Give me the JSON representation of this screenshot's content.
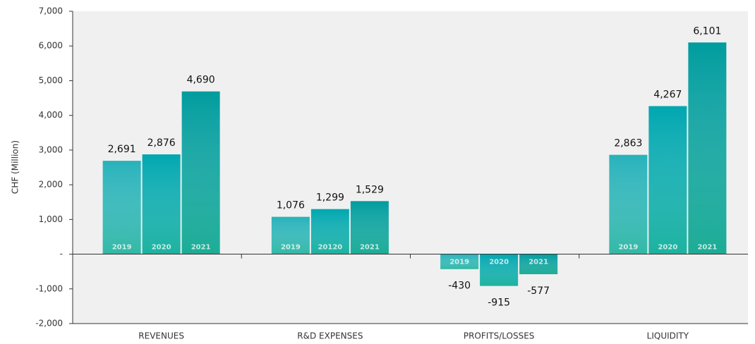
{
  "chart_data": {
    "type": "bar",
    "ylabel": "CHF (Million)",
    "categories": [
      "REVENUES",
      "R&D EXPENSES",
      "PROFITS/LOSSES",
      "LIQUIDITY"
    ],
    "series": [
      {
        "color": "#27b2ba",
        "values": [
          2691,
          1076,
          -430,
          2863
        ],
        "value_labels": [
          "2,691",
          "1,076",
          "-430",
          "2,863"
        ],
        "bar_labels": [
          "2019",
          "2019",
          "2019",
          "2019"
        ]
      },
      {
        "color": "#00a7b0",
        "values": [
          2876,
          1299,
          -915,
          4267
        ],
        "value_labels": [
          "2,876",
          "1,299",
          "-915",
          "4,267"
        ],
        "bar_labels": [
          "2020",
          "20120",
          "2020",
          "2020"
        ]
      },
      {
        "color": "#009c9e",
        "values": [
          4690,
          1529,
          -577,
          6101
        ],
        "value_labels": [
          "4,690",
          "1,529",
          "-577",
          "6,101"
        ],
        "bar_labels": [
          "2021",
          "2021",
          "2021",
          "2021"
        ]
      }
    ],
    "ylim": [
      -2000,
      7000
    ],
    "yticks": [
      {
        "value": -2000,
        "label": "-2,000"
      },
      {
        "value": -1000,
        "label": "-1,000"
      },
      {
        "value": 0,
        "label": "-"
      },
      {
        "value": 1000,
        "label": "1,000"
      },
      {
        "value": 2000,
        "label": "2,000"
      },
      {
        "value": 3000,
        "label": "3,000"
      },
      {
        "value": 4000,
        "label": "4,000"
      },
      {
        "value": 5000,
        "label": "5,000"
      },
      {
        "value": 6000,
        "label": "6,000"
      },
      {
        "value": 7000,
        "label": "7,000"
      }
    ]
  }
}
